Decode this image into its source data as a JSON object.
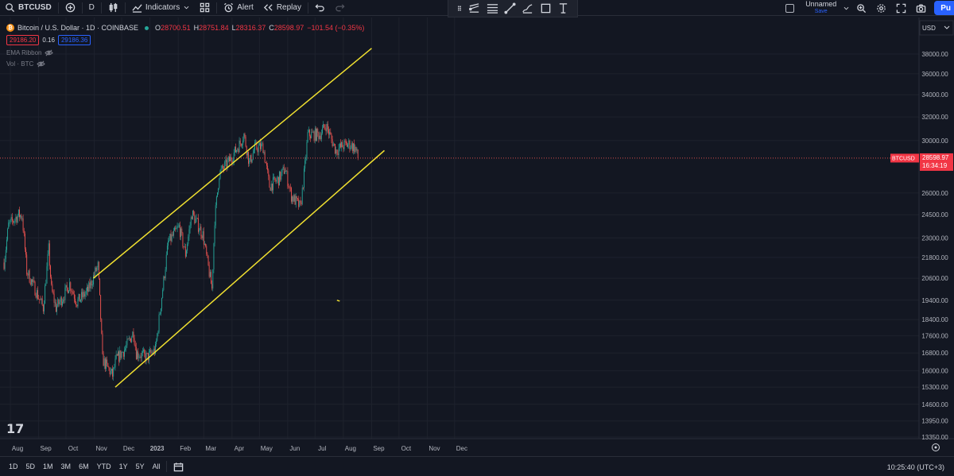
{
  "toolbar": {
    "symbol": "BTCUSD",
    "interval": "D",
    "indicators_label": "Indicators",
    "alert_label": "Alert",
    "replay_label": "Replay",
    "layout_name": "Unnamed",
    "save_label": "Save",
    "publish_label": "Pu"
  },
  "legend": {
    "title": "Bitcoin / U.S. Dollar · 1D · COINBASE",
    "open_label": "O",
    "open": "28700.51",
    "high_label": "H",
    "high": "28751.84",
    "low_label": "L",
    "low": "28316.37",
    "close_label": "C",
    "close": "28598.97",
    "change": "−101.54 (−0.35%)",
    "sell_price": "29186.20",
    "spread": "0.16",
    "buy_price": "29186.36",
    "indicator1": "EMA Ribbon",
    "indicator2": "Vol · BTC"
  },
  "price_axis": {
    "currency": "USD",
    "current_symbol": "BTCUSD",
    "current_price": "28598.97",
    "countdown": "16:34:19"
  },
  "bottom": {
    "timeframes": [
      "1D",
      "5D",
      "1M",
      "3M",
      "6M",
      "YTD",
      "1Y",
      "5Y",
      "All"
    ],
    "clock": "10:25:40 (UTC+3)"
  },
  "colors": {
    "up": "#26a69a",
    "down": "#ef5350",
    "channel": "#f0e030",
    "background": "#131722",
    "grid": "#1e222d"
  },
  "chart_data": {
    "type": "candlestick",
    "title": "",
    "y_ticks": [
      38000,
      36000,
      34000,
      32000,
      30000,
      26000,
      24500,
      23000,
      21800,
      20600,
      19400,
      18400,
      17600,
      16800,
      16000,
      15300,
      14600,
      13950,
      13350
    ],
    "y_scale": "log",
    "x_ticks": [
      "Aug",
      "Sep",
      "Oct",
      "Nov",
      "Dec",
      "2023",
      "Feb",
      "Mar",
      "Apr",
      "May",
      "Jun",
      "Jul",
      "Aug",
      "Sep",
      "Oct",
      "Nov",
      "Dec"
    ],
    "x_range": [
      "2022-07-25",
      "2023-12-31"
    ],
    "price_path": [
      [
        "2022-07-25",
        21500
      ],
      [
        "2022-07-30",
        23800
      ],
      [
        "2022-08-10",
        24500
      ],
      [
        "2022-08-14",
        24400
      ],
      [
        "2022-08-19",
        21000
      ],
      [
        "2022-08-28",
        20000
      ],
      [
        "2022-09-06",
        19000
      ],
      [
        "2022-09-12",
        22300
      ],
      [
        "2022-09-15",
        20000
      ],
      [
        "2022-09-20",
        19000
      ],
      [
        "2022-09-28",
        19600
      ],
      [
        "2022-10-05",
        20300
      ],
      [
        "2022-10-13",
        19300
      ],
      [
        "2022-10-25",
        19900
      ],
      [
        "2022-11-01",
        20800
      ],
      [
        "2022-11-05",
        21300
      ],
      [
        "2022-11-08",
        18500
      ],
      [
        "2022-11-10",
        16500
      ],
      [
        "2022-11-13",
        16300
      ],
      [
        "2022-11-21",
        15800
      ],
      [
        "2022-11-25",
        16500
      ],
      [
        "2022-12-05",
        17000
      ],
      [
        "2022-12-14",
        17800
      ],
      [
        "2022-12-17",
        16800
      ],
      [
        "2022-12-29",
        16600
      ],
      [
        "2023-01-07",
        16950
      ],
      [
        "2023-01-12",
        18800
      ],
      [
        "2023-01-21",
        22700
      ],
      [
        "2023-02-02",
        23700
      ],
      [
        "2023-02-09",
        22000
      ],
      [
        "2023-02-16",
        24600
      ],
      [
        "2023-02-28",
        23200
      ],
      [
        "2023-03-10",
        20000
      ],
      [
        "2023-03-13",
        24200
      ],
      [
        "2023-03-18",
        27400
      ],
      [
        "2023-03-30",
        28500
      ],
      [
        "2023-04-10",
        29800
      ],
      [
        "2023-04-14",
        30500
      ],
      [
        "2023-04-20",
        28200
      ],
      [
        "2023-04-26",
        29400
      ],
      [
        "2023-05-05",
        29500
      ],
      [
        "2023-05-12",
        26500
      ],
      [
        "2023-05-22",
        27000
      ],
      [
        "2023-05-29",
        27800
      ],
      [
        "2023-06-05",
        25800
      ],
      [
        "2023-06-15",
        25000
      ],
      [
        "2023-06-20",
        28000
      ],
      [
        "2023-06-23",
        30500
      ],
      [
        "2023-07-06",
        30500
      ],
      [
        "2023-07-13",
        31300
      ],
      [
        "2023-07-20",
        29900
      ],
      [
        "2023-07-24",
        29200
      ],
      [
        "2023-08-01",
        29600
      ],
      [
        "2023-08-08",
        29700
      ],
      [
        "2023-08-14",
        29400
      ],
      [
        "2023-08-17",
        28600
      ]
    ],
    "channel_upper": [
      [
        "2022-10-31",
        20600
      ],
      [
        "2023-09-01",
        38600
      ]
    ],
    "channel_lower": [
      [
        "2022-11-24",
        15300
      ],
      [
        "2023-09-15",
        29200
      ]
    ],
    "marker": [
      [
        "2023-07-25",
        19400
      ],
      [
        "2023-07-28",
        19350
      ]
    ]
  }
}
